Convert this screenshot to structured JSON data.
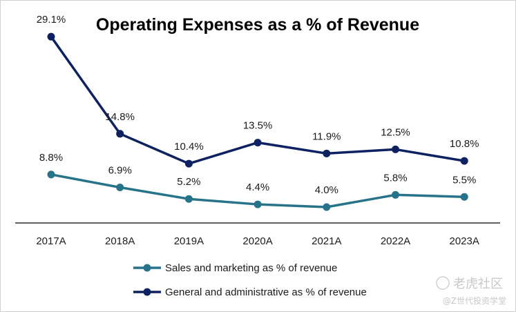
{
  "chart_data": {
    "type": "line",
    "title": "Operating Expenses as a % of Revenue",
    "categories": [
      "2017A",
      "2018A",
      "2019A",
      "2020A",
      "2021A",
      "2022A",
      "2023A"
    ],
    "series": [
      {
        "name": "Sales and marketing as % of revenue",
        "values": [
          8.8,
          6.9,
          5.2,
          4.4,
          4.0,
          5.8,
          5.5
        ],
        "labels": [
          "8.8%",
          "6.9%",
          "5.2%",
          "4.4%",
          "4.0%",
          "5.8%",
          "5.5%"
        ],
        "color": "#26738A"
      },
      {
        "name": "General and administrative as % of revenue",
        "values": [
          29.1,
          14.8,
          10.4,
          13.5,
          11.9,
          12.5,
          10.8
        ],
        "labels": [
          "29.1%",
          "14.8%",
          "10.4%",
          "13.5%",
          "11.9%",
          "12.5%",
          "10.8%"
        ],
        "color": "#0E2160"
      }
    ],
    "ylim": [
      -8,
      34
    ],
    "grid": false,
    "legend_position": "bottom"
  },
  "watermark": {
    "brand": "老虎社区",
    "handle": "@Z世代投资学堂"
  }
}
